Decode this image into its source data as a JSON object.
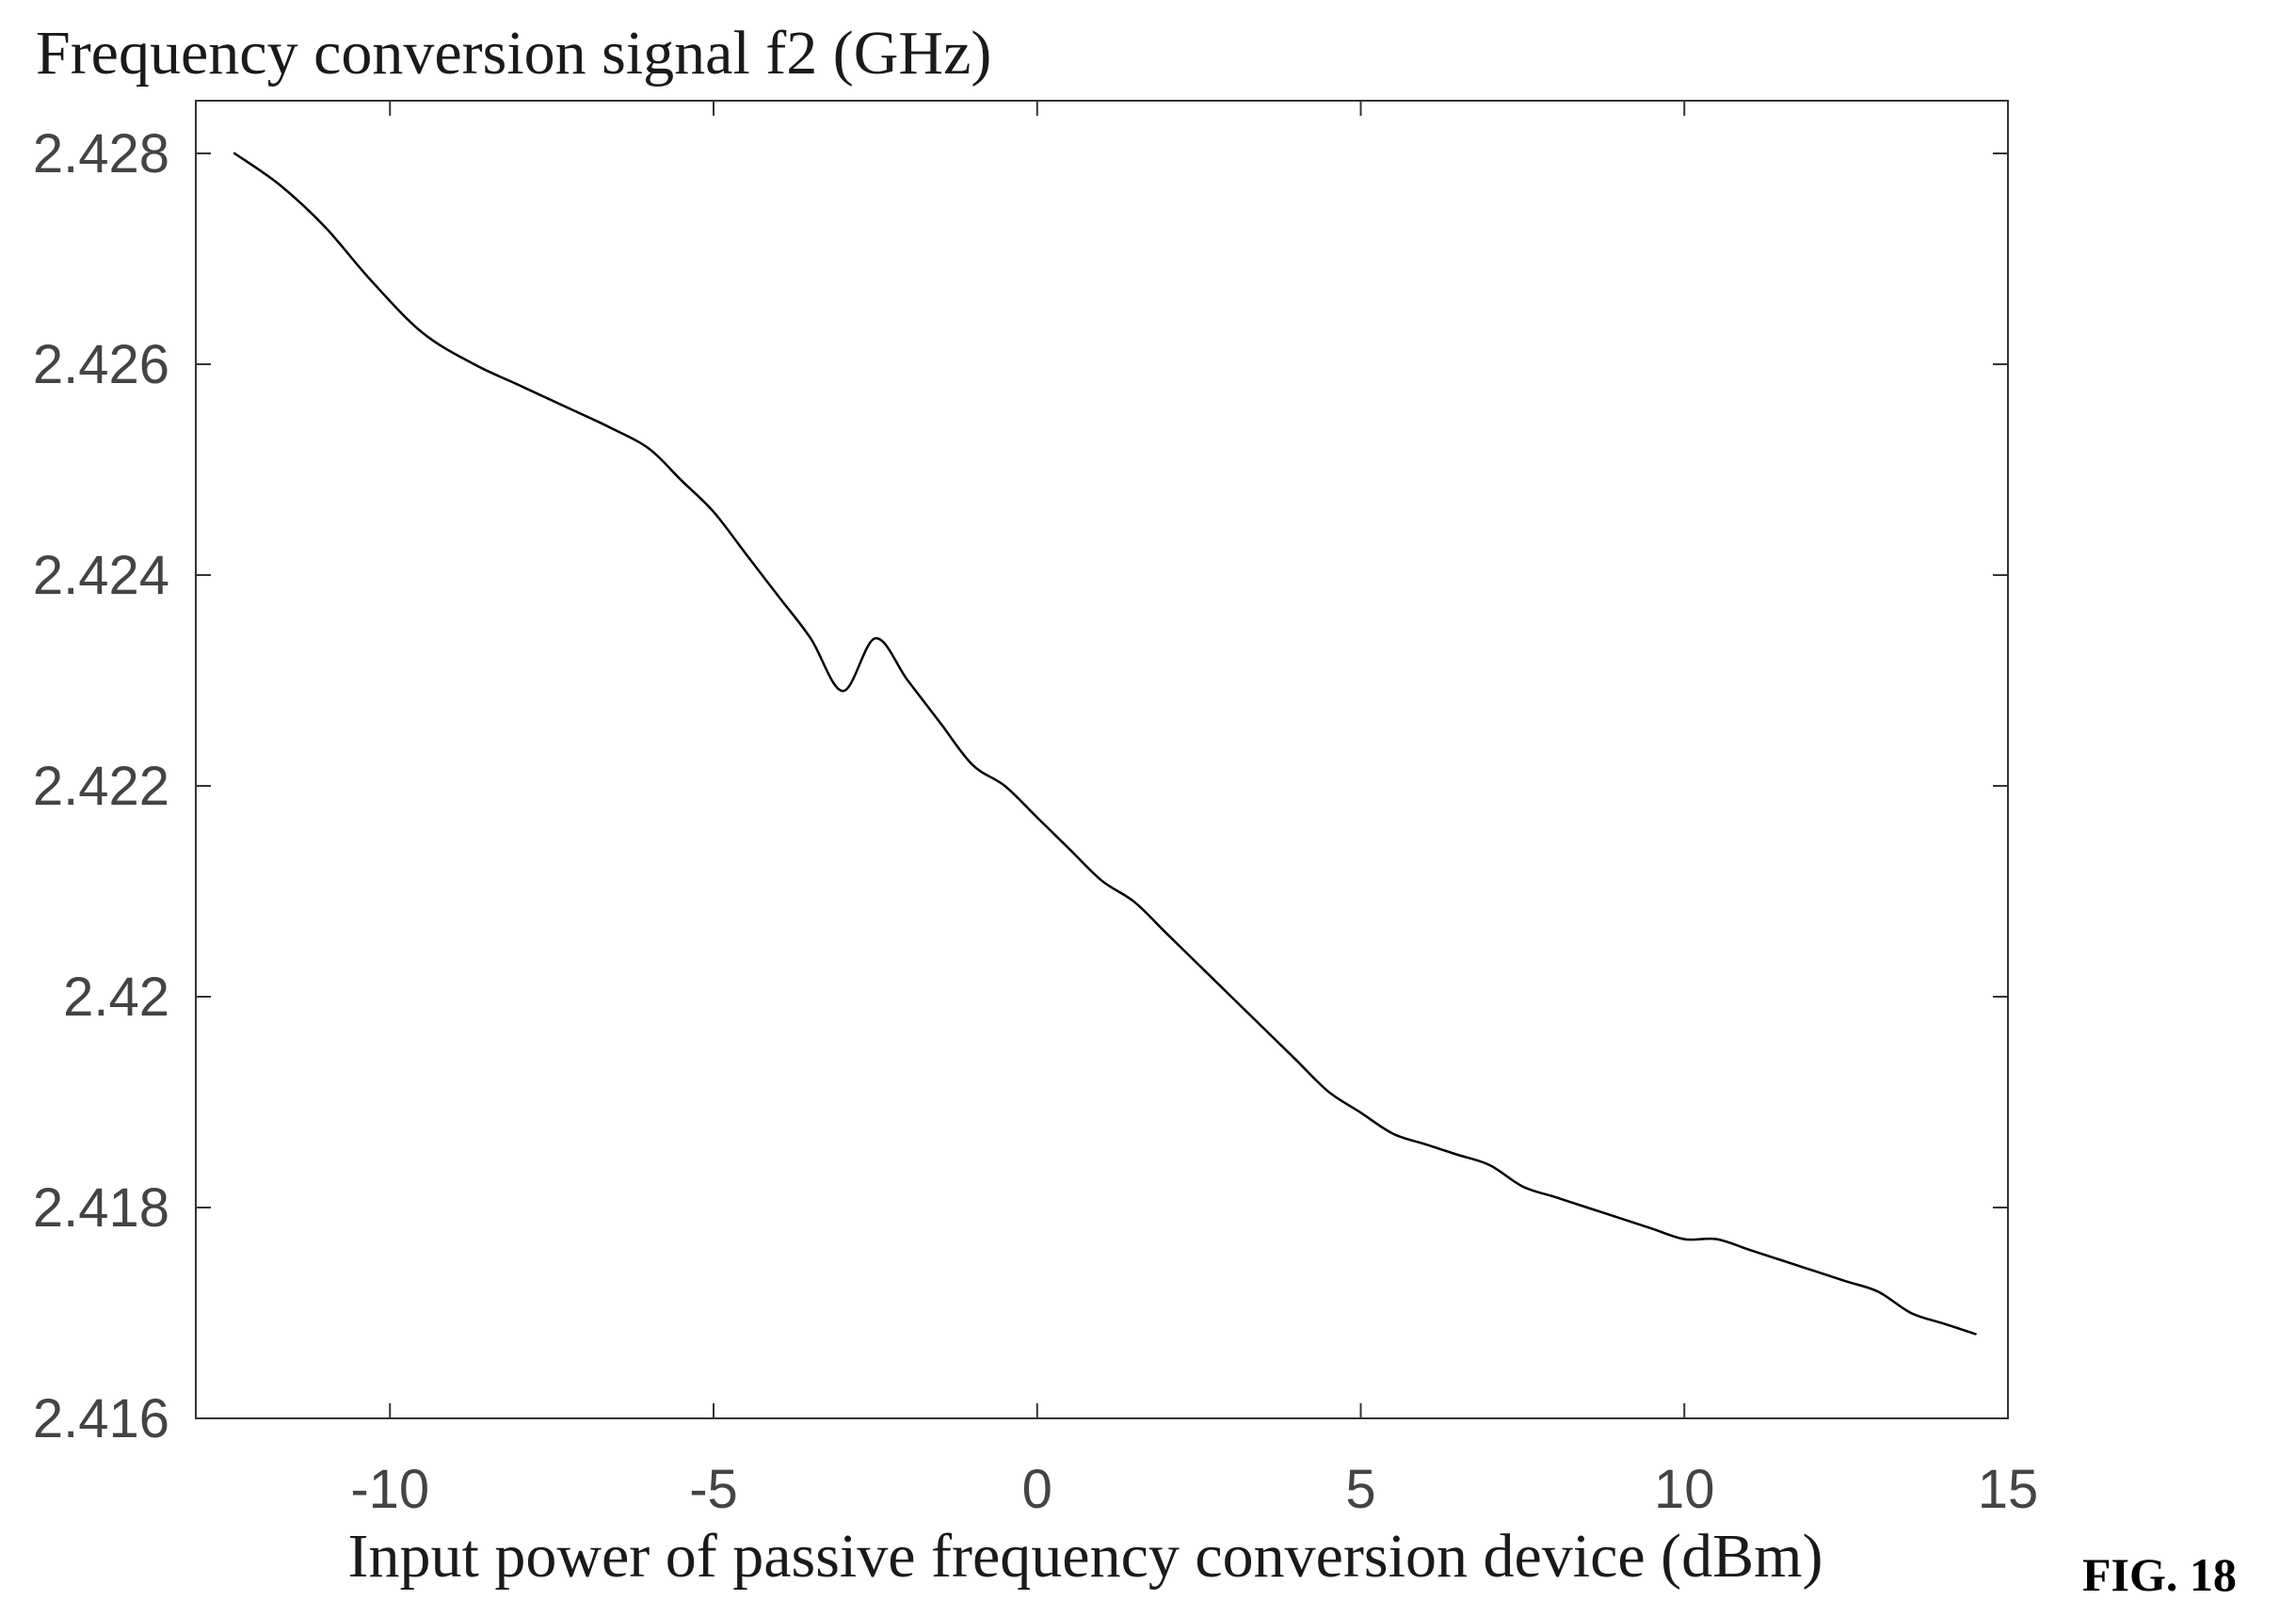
{
  "figure_label": "FIG. 18",
  "chart_data": {
    "type": "line",
    "title": "",
    "ylabel": "Frequency conversion signal f2 (GHz)",
    "xlabel": "Input power of passive frequency conversion device (dBm)",
    "xlim": [
      -13,
      15
    ],
    "ylim": [
      2.416,
      2.4285
    ],
    "xticks": [
      -10,
      -5,
      0,
      5,
      10,
      15
    ],
    "xtick_labels": [
      "-10",
      "-5",
      "0",
      "5",
      "10",
      "15"
    ],
    "yticks": [
      2.416,
      2.418,
      2.42,
      2.422,
      2.424,
      2.426,
      2.428
    ],
    "ytick_labels": [
      "2.416",
      "2.418",
      "2.42",
      "2.422",
      "2.424",
      "2.426",
      "2.428"
    ],
    "grid": false,
    "legend": "none",
    "line_color": "#000000",
    "series": [
      {
        "x": [
          -12.4,
          -11.7,
          -11.0,
          -10.3,
          -9.5,
          -8.7,
          -8.0,
          -7.3,
          -6.6,
          -6.0,
          -5.5,
          -5.0,
          -4.5,
          -4.0,
          -3.5,
          -3.0,
          -2.5,
          -2.0,
          -1.5,
          -1.0,
          -0.5,
          0.0,
          0.5,
          1.0,
          1.5,
          2.0,
          2.5,
          3.0,
          3.5,
          4.0,
          4.5,
          5.0,
          5.5,
          6.0,
          6.5,
          7.0,
          7.5,
          8.0,
          8.5,
          9.0,
          9.5,
          10.0,
          10.5,
          11.0,
          11.5,
          12.0,
          12.5,
          13.0,
          13.5,
          14.0,
          14.5
        ],
        "y": [
          2.428,
          2.4277,
          2.4273,
          2.4268,
          2.4263,
          2.426,
          2.4258,
          2.4256,
          2.4254,
          2.4252,
          2.4249,
          2.4246,
          2.4242,
          2.4238,
          2.4234,
          2.4229,
          2.4234,
          2.423,
          2.4226,
          2.4222,
          2.422,
          2.4217,
          2.4214,
          2.4211,
          2.4209,
          2.4206,
          2.4203,
          2.42,
          2.4197,
          2.4194,
          2.4191,
          2.4189,
          2.4187,
          2.4186,
          2.4185,
          2.4184,
          2.4182,
          2.4181,
          2.418,
          2.4179,
          2.4178,
          2.4177,
          2.4177,
          2.4176,
          2.4175,
          2.4174,
          2.4173,
          2.4172,
          2.417,
          2.4169,
          2.4168
        ]
      }
    ]
  }
}
